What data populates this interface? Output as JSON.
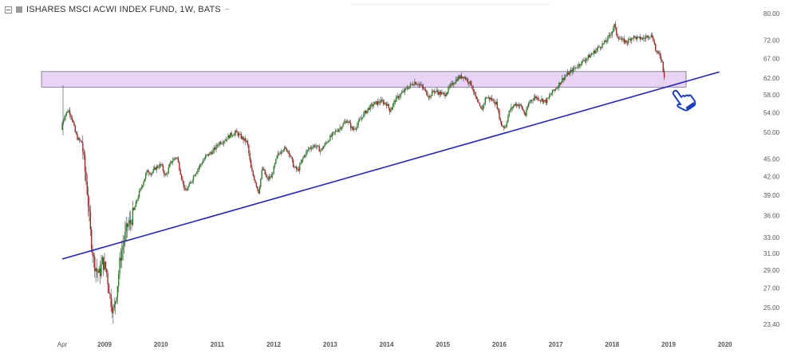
{
  "legend": {
    "title": "ISHARES MSCI ACWI INDEX FUND, 1W, BATS",
    "caret": "~"
  },
  "colors": {
    "up": "#1e8a1e",
    "down": "#b41e24",
    "wick": "#444444",
    "trendline": "#2323c8",
    "zone_fill": "#e8d4f4",
    "zone_stroke": "#7a6a86",
    "hand_icon": "#1a3cc8",
    "axis_text": "#555555"
  },
  "icons": {
    "pointer": "pointing-hand-icon"
  },
  "chart_data": {
    "type": "candlestick",
    "title": "ISHARES MSCI ACWI INDEX FUND, 1W, BATS",
    "x_axis": {
      "tick_labels": [
        "Apr",
        "2009",
        "2010",
        "2011",
        "2012",
        "2013",
        "2014",
        "2015",
        "2016",
        "2017",
        "2018",
        "2019",
        "2020"
      ],
      "tick_dates": [
        2008.25,
        2009.0,
        2010.0,
        2011.0,
        2012.0,
        2013.0,
        2014.0,
        2015.0,
        2016.0,
        2017.0,
        2018.0,
        2019.0,
        2020.0
      ],
      "range": [
        2008.0,
        2020.3
      ]
    },
    "y_axis": {
      "scale": "log",
      "tick_labels": [
        "80.00",
        "72.00",
        "67.00",
        "62.00",
        "58.00",
        "54.00",
        "50.00",
        "45.00",
        "42.00",
        "39.00",
        "36.00",
        "33.00",
        "31.00",
        "29.00",
        "27.00",
        "25.00",
        "23.40"
      ],
      "tick_values": [
        80,
        72,
        67,
        62,
        58,
        54,
        50,
        45,
        42,
        39,
        36,
        33,
        31,
        29,
        27,
        25,
        23.4
      ],
      "range": [
        22.6,
        82.5
      ]
    },
    "price_path": [
      [
        2008.25,
        50.5
      ],
      [
        2008.28,
        52.5
      ],
      [
        2008.33,
        53.8
      ],
      [
        2008.38,
        54.6
      ],
      [
        2008.43,
        53.4
      ],
      [
        2008.5,
        50.0
      ],
      [
        2008.55,
        48.6
      ],
      [
        2008.62,
        48.0
      ],
      [
        2008.66,
        44.0
      ],
      [
        2008.72,
        39.0
      ],
      [
        2008.77,
        33.5
      ],
      [
        2008.83,
        30.0
      ],
      [
        2008.88,
        29.0
      ],
      [
        2008.93,
        28.5
      ],
      [
        2008.98,
        30.0
      ],
      [
        2009.05,
        29.0
      ],
      [
        2009.12,
        26.0
      ],
      [
        2009.18,
        24.5
      ],
      [
        2009.25,
        27.5
      ],
      [
        2009.3,
        30.5
      ],
      [
        2009.36,
        32.5
      ],
      [
        2009.42,
        34.5
      ],
      [
        2009.48,
        35.0
      ],
      [
        2009.55,
        37.0
      ],
      [
        2009.62,
        39.0
      ],
      [
        2009.7,
        41.0
      ],
      [
        2009.78,
        43.0
      ],
      [
        2009.85,
        42.5
      ],
      [
        2009.93,
        43.5
      ],
      [
        2010.02,
        44.0
      ],
      [
        2010.1,
        42.0
      ],
      [
        2010.2,
        44.5
      ],
      [
        2010.3,
        45.5
      ],
      [
        2010.38,
        42.0
      ],
      [
        2010.45,
        39.5
      ],
      [
        2010.52,
        40.5
      ],
      [
        2010.62,
        42.5
      ],
      [
        2010.72,
        44.0
      ],
      [
        2010.82,
        45.5
      ],
      [
        2010.95,
        46.5
      ],
      [
        2011.05,
        48.0
      ],
      [
        2011.15,
        48.5
      ],
      [
        2011.25,
        49.5
      ],
      [
        2011.35,
        50.0
      ],
      [
        2011.45,
        49.0
      ],
      [
        2011.55,
        48.0
      ],
      [
        2011.62,
        43.0
      ],
      [
        2011.68,
        41.5
      ],
      [
        2011.75,
        39.5
      ],
      [
        2011.82,
        43.5
      ],
      [
        2011.9,
        41.5
      ],
      [
        2011.98,
        42.0
      ],
      [
        2012.08,
        45.5
      ],
      [
        2012.18,
        47.0
      ],
      [
        2012.28,
        46.5
      ],
      [
        2012.38,
        43.5
      ],
      [
        2012.45,
        43.0
      ],
      [
        2012.55,
        45.5
      ],
      [
        2012.65,
        47.0
      ],
      [
        2012.75,
        47.5
      ],
      [
        2012.85,
        46.5
      ],
      [
        2012.98,
        48.5
      ],
      [
        2013.1,
        50.0
      ],
      [
        2013.2,
        51.0
      ],
      [
        2013.32,
        52.5
      ],
      [
        2013.42,
        50.5
      ],
      [
        2013.5,
        51.5
      ],
      [
        2013.6,
        53.5
      ],
      [
        2013.7,
        55.0
      ],
      [
        2013.8,
        56.0
      ],
      [
        2013.92,
        56.5
      ],
      [
        2014.02,
        56.0
      ],
      [
        2014.08,
        54.5
      ],
      [
        2014.18,
        57.0
      ],
      [
        2014.3,
        58.5
      ],
      [
        2014.42,
        60.0
      ],
      [
        2014.52,
        61.0
      ],
      [
        2014.6,
        60.5
      ],
      [
        2014.7,
        59.0
      ],
      [
        2014.78,
        57.5
      ],
      [
        2014.85,
        59.0
      ],
      [
        2014.95,
        58.5
      ],
      [
        2015.05,
        58.0
      ],
      [
        2015.15,
        60.0
      ],
      [
        2015.28,
        62.0
      ],
      [
        2015.38,
        62.5
      ],
      [
        2015.45,
        61.5
      ],
      [
        2015.52,
        60.5
      ],
      [
        2015.62,
        56.5
      ],
      [
        2015.7,
        54.5
      ],
      [
        2015.78,
        57.5
      ],
      [
        2015.88,
        57.0
      ],
      [
        2015.97,
        56.0
      ],
      [
        2016.05,
        51.5
      ],
      [
        2016.12,
        51.0
      ],
      [
        2016.2,
        54.5
      ],
      [
        2016.3,
        56.0
      ],
      [
        2016.4,
        55.5
      ],
      [
        2016.48,
        53.5
      ],
      [
        2016.55,
        56.5
      ],
      [
        2016.65,
        57.5
      ],
      [
        2016.75,
        57.0
      ],
      [
        2016.85,
        56.5
      ],
      [
        2016.95,
        58.5
      ],
      [
        2017.05,
        60.0
      ],
      [
        2017.15,
        62.0
      ],
      [
        2017.28,
        63.5
      ],
      [
        2017.4,
        65.0
      ],
      [
        2017.52,
        66.5
      ],
      [
        2017.65,
        68.0
      ],
      [
        2017.78,
        70.0
      ],
      [
        2017.9,
        71.5
      ],
      [
        2018.0,
        74.0
      ],
      [
        2018.06,
        76.5
      ],
      [
        2018.1,
        73.5
      ],
      [
        2018.18,
        72.0
      ],
      [
        2018.28,
        71.5
      ],
      [
        2018.38,
        73.0
      ],
      [
        2018.48,
        72.5
      ],
      [
        2018.58,
        72.5
      ],
      [
        2018.68,
        73.5
      ],
      [
        2018.74,
        73.0
      ],
      [
        2018.8,
        68.5
      ],
      [
        2018.86,
        68.0
      ],
      [
        2018.9,
        66.5
      ],
      [
        2018.94,
        62.4
      ]
    ],
    "horizontal_zone": {
      "x_start": 2008.0,
      "x_end": 2019.45,
      "y_low": 59.8,
      "y_high": 63.6
    },
    "trendline": {
      "x1": 2008.25,
      "y1": 30.3,
      "x2": 2019.9,
      "y2": 63.5
    },
    "annotation": {
      "type": "pointing-hand",
      "x": 2019.22,
      "y": 56.0
    }
  }
}
